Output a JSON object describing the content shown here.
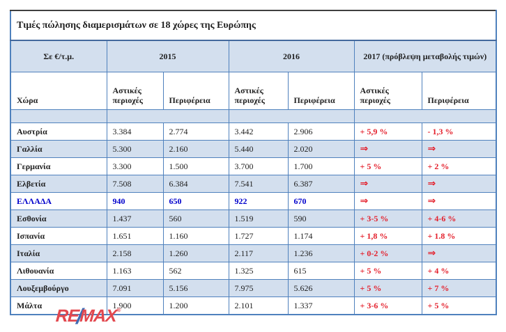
{
  "title": "Τιμές πώλησης διαμερισμάτων σε 18 χώρες της Ευρώπης",
  "table": {
    "unit_label": "Σε €/τ.μ.",
    "year_headers": [
      "2015",
      "2016",
      "2017 (πρόβλεψη μεταβολής τιμών)"
    ],
    "country_col_label": "Χώρα",
    "urban_label": "Αστικές περιοχές",
    "region_label": "Περιφέρεια",
    "rows": [
      {
        "country": "Αυστρία",
        "prices": [
          "3.384",
          "2.774",
          "3.442",
          "2.906"
        ],
        "forecasts": [
          "+ 5,9 %",
          "- 1,3 %"
        ],
        "highlight": false
      },
      {
        "country": "Γαλλία",
        "prices": [
          "5.300",
          "2.160",
          "5.440",
          "2.020"
        ],
        "forecasts": [
          "⇒",
          "⇒"
        ],
        "highlight": false
      },
      {
        "country": "Γερμανία",
        "prices": [
          "3.300",
          "1.500",
          "3.700",
          "1.700"
        ],
        "forecasts": [
          "+ 5 %",
          "+ 2 %"
        ],
        "highlight": false
      },
      {
        "country": "Ελβετία",
        "prices": [
          "7.508",
          "6.384",
          "7.541",
          "6.387"
        ],
        "forecasts": [
          "⇒",
          "⇒"
        ],
        "highlight": false
      },
      {
        "country": "ΕΛΛΑΔΑ",
        "prices": [
          "940",
          "650",
          "922",
          "670"
        ],
        "forecasts": [
          "⇒",
          "⇒"
        ],
        "highlight": true
      },
      {
        "country": "Εσθονία",
        "prices": [
          "1.437",
          "560",
          "1.519",
          "590"
        ],
        "forecasts": [
          "+ 3-5 %",
          "+ 4-6 %"
        ],
        "highlight": false
      },
      {
        "country": "Ισπανία",
        "prices": [
          "1.651",
          "1.160",
          "1.727",
          "1.174"
        ],
        "forecasts": [
          "+ 1,8 %",
          "+ 1.8 %"
        ],
        "highlight": false
      },
      {
        "country": "Ιταλία",
        "prices": [
          "2.158",
          "1.260",
          "2.117",
          "1.236"
        ],
        "forecasts": [
          "+ 0-2 %",
          "⇒"
        ],
        "highlight": false
      },
      {
        "country": "Λιθουανία",
        "prices": [
          "1.163",
          "562",
          "1.325",
          "615"
        ],
        "forecasts": [
          "+ 5 %",
          "+ 4 %"
        ],
        "highlight": false
      },
      {
        "country": "Λουξεμβούργο",
        "prices": [
          "7.091",
          "5.156",
          "7.975",
          "5.626"
        ],
        "forecasts": [
          "+ 5 %",
          "+ 7 %"
        ],
        "highlight": false
      },
      {
        "country": "Μάλτα",
        "prices": [
          "1.900",
          "1.200",
          "2.101",
          "1.337"
        ],
        "forecasts": [
          "+ 3-6 %",
          "+ 5 %"
        ],
        "highlight": false
      }
    ]
  },
  "logo": {
    "re": "RE",
    "slash": "/",
    "max": "MAX",
    "reg": "®"
  },
  "colors": {
    "band_blue": "#d3dfee",
    "border_blue": "#4f81bd",
    "forecast_red": "#e4202c",
    "greece_blue": "#0000cc",
    "logo_red": "#e2484f",
    "logo_blue": "#3f6cb4"
  }
}
